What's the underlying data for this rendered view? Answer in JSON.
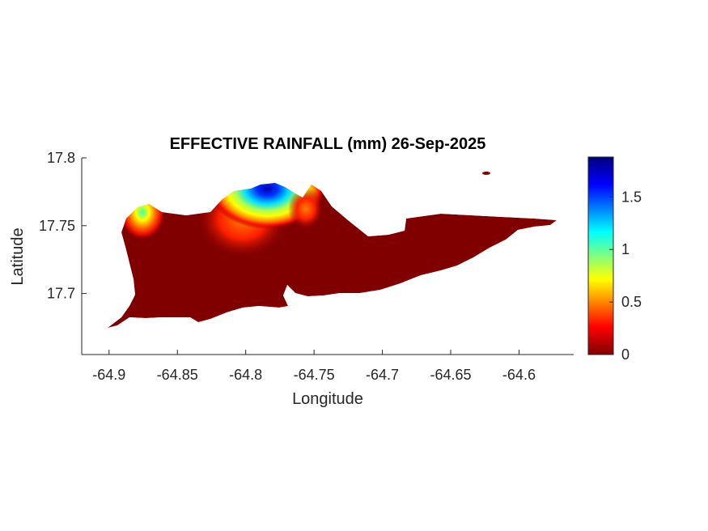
{
  "chart_data": {
    "type": "heatmap",
    "title": "EFFECTIVE RAINFALL (mm) 26-Sep-2025",
    "xlabel": "Longitude",
    "ylabel": "Latitude",
    "xlim": [
      -64.92,
      -64.56
    ],
    "ylim": [
      17.655,
      17.8
    ],
    "xticks": [
      -64.9,
      -64.85,
      -64.8,
      -64.75,
      -64.7,
      -64.65,
      -64.6
    ],
    "xtick_labels": [
      "-64.9",
      "-64.85",
      "-64.8",
      "-64.75",
      "-64.7",
      "-64.65",
      "-64.6"
    ],
    "yticks": [
      17.7,
      17.75,
      17.8
    ],
    "ytick_labels": [
      "17.7",
      "17.75",
      "17.8"
    ],
    "colorbar": {
      "colormap": "jet",
      "range": [
        0,
        1.88
      ],
      "ticks": [
        0,
        0.5,
        1,
        1.5
      ],
      "tick_labels": [
        "0",
        "0.5",
        "1",
        "1.5"
      ],
      "colors": [
        "#000080",
        "#0000ff",
        "#00ffff",
        "#ffff00",
        "#ff0000",
        "#800000"
      ]
    },
    "background_value": 0,
    "hotspots": [
      {
        "lon": -64.79,
        "lat": 17.777,
        "value": 1.85
      },
      {
        "lon": -64.876,
        "lat": 17.766,
        "value": 1.0
      },
      {
        "lon": -64.81,
        "lat": 17.755,
        "value": 0.6
      }
    ],
    "grid": false
  }
}
